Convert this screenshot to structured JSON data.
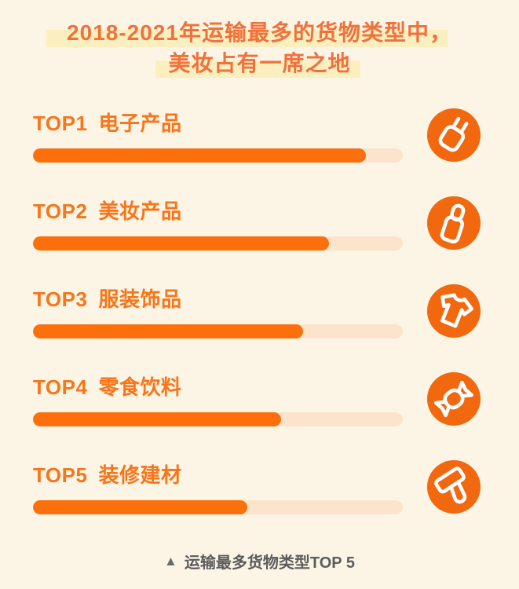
{
  "title": {
    "line1": "2018-2021年运输最多的货物类型中，",
    "line2": "美妆占有一席之地"
  },
  "rows": [
    {
      "rank": "TOP1",
      "name": "电子产品",
      "percent": 90,
      "icon": "power-plug"
    },
    {
      "rank": "TOP2",
      "name": "美妆产品",
      "percent": 80,
      "icon": "cosmetic-bottle"
    },
    {
      "rank": "TOP3",
      "name": "服装饰品",
      "percent": 73,
      "icon": "t-shirt"
    },
    {
      "rank": "TOP4",
      "name": "零食饮料",
      "percent": 67,
      "icon": "candy"
    },
    {
      "rank": "TOP5",
      "name": "装修建材",
      "percent": 58,
      "icon": "paint-roller"
    }
  ],
  "caption": {
    "marker": "▲",
    "text": "运输最多货物类型TOP 5"
  },
  "colors": {
    "background": "#FCF5E6",
    "bar_fill": "#FB6F0C",
    "bar_track": "#FBE4CB",
    "icon_circle": "#F2680F",
    "title_text": "#F1713C",
    "label_text": "#F8751A",
    "title_highlight": "#FBEFC0",
    "caption_text": "#5C5C5C"
  },
  "chart_data": {
    "type": "bar",
    "orientation": "horizontal",
    "title": "2018-2021年运输最多的货物类型中，美妆占有一席之地",
    "caption": "运输最多货物类型TOP 5",
    "rank_labels": [
      "TOP1",
      "TOP2",
      "TOP3",
      "TOP4",
      "TOP5"
    ],
    "categories": [
      "电子产品",
      "美妆产品",
      "服装饰品",
      "零食饮料",
      "装修建材"
    ],
    "values": [
      90,
      80,
      73,
      67,
      58
    ],
    "values_note": "estimated bar fill percent of track; no numeric labels shown",
    "xlim": [
      0,
      100
    ],
    "grid": false,
    "legend": false
  }
}
